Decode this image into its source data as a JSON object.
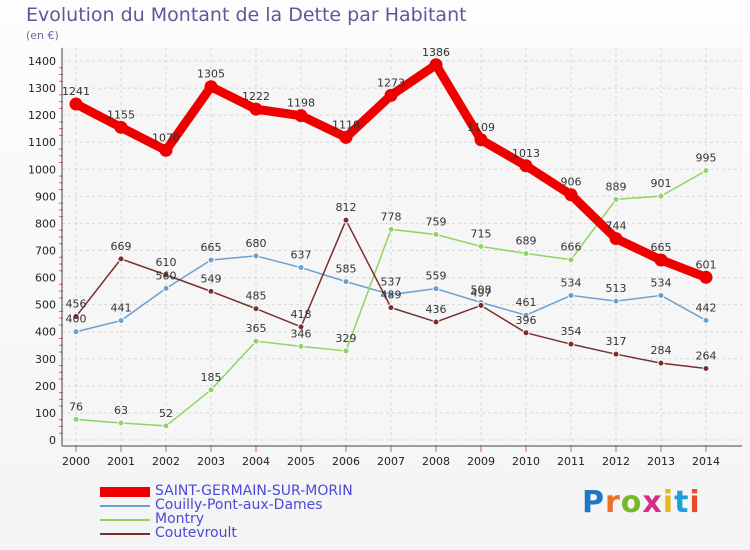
{
  "title": "Evolution du Montant de la Dette par Habitant",
  "unit": "(en €)",
  "brand": {
    "text": "Proxiti",
    "letter_colors": [
      "#1f76c8",
      "#e8702a",
      "#78b82a",
      "#d62d8a",
      "#e8b81a",
      "#1f9ed8",
      "#e84b2a"
    ]
  },
  "chart_data": {
    "type": "line",
    "x": [
      "2000",
      "2001",
      "2002",
      "2003",
      "2004",
      "2005",
      "2006",
      "2007",
      "2008",
      "2009",
      "2010",
      "2011",
      "2012",
      "2013",
      "2014"
    ],
    "ylim": [
      0,
      1400
    ],
    "yticks": [
      0,
      100,
      200,
      300,
      400,
      500,
      600,
      700,
      800,
      900,
      1000,
      1100,
      1200,
      1300,
      1400
    ],
    "grid": true,
    "legend_position": "bottom-left",
    "series": [
      {
        "name": "SAINT-GERMAIN-SUR-MORIN",
        "color": "#ee0000",
        "values": [
          1241,
          1155,
          1070,
          1305,
          1222,
          1198,
          1118,
          1273,
          1386,
          1109,
          1013,
          906,
          744,
          665,
          601
        ]
      },
      {
        "name": "Couilly-Pont-aux-Dames",
        "color": "#6aa0d0",
        "values": [
          400,
          441,
          560,
          665,
          680,
          637,
          585,
          537,
          559,
          508,
          461,
          534,
          513,
          534,
          442
        ]
      },
      {
        "name": "Montry",
        "color": "#8fd462",
        "values": [
          76,
          63,
          52,
          185,
          365,
          346,
          329,
          778,
          759,
          715,
          689,
          666,
          889,
          901,
          995
        ]
      },
      {
        "name": "Coutevroult",
        "color": "#7a2f2f",
        "values": [
          456,
          669,
          610,
          549,
          485,
          418,
          812,
          489,
          436,
          497,
          396,
          354,
          317,
          284,
          264
        ]
      }
    ]
  }
}
